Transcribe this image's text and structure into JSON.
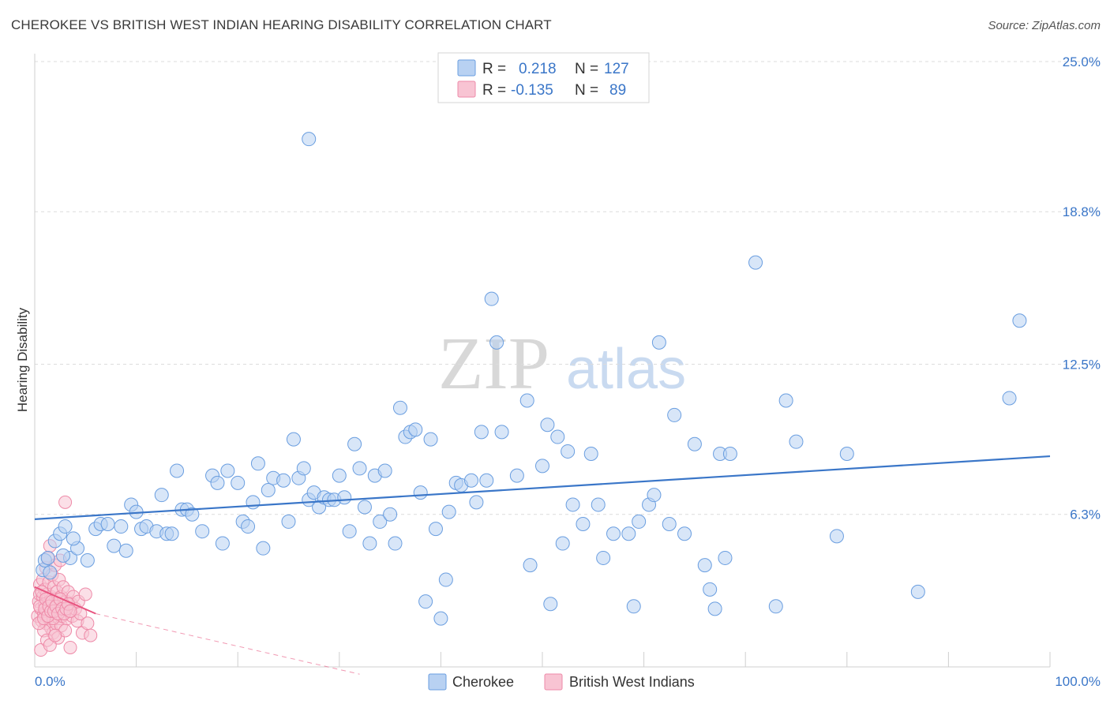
{
  "title": "CHEROKEE VS BRITISH WEST INDIAN HEARING DISABILITY CORRELATION CHART",
  "source": "Source: ZipAtlas.com",
  "watermark": {
    "zip": "ZIP",
    "atlas": "atlas"
  },
  "legend": [
    {
      "r_label": "R =",
      "r_value": "0.218",
      "n_label": "N =",
      "n_value": "127",
      "fill": "#b8d1f2",
      "stroke": "#6a9ee0"
    },
    {
      "r_label": "R =",
      "r_value": "-0.135",
      "n_label": "N =",
      "n_value": "89",
      "fill": "#f8c4d3",
      "stroke": "#ee8aa8"
    }
  ],
  "bottom_legend": [
    {
      "label": "Cherokee",
      "fill": "#b8d1f2",
      "stroke": "#6a9ee0"
    },
    {
      "label": "British West Indians",
      "fill": "#f8c4d3",
      "stroke": "#ee8aa8"
    }
  ],
  "chart_data": {
    "type": "scatter",
    "ylabel": "Hearing Disability",
    "xlabel": "",
    "xlim": [
      0,
      100
    ],
    "ylim": [
      0,
      25
    ],
    "x_tick_labels": [
      "0.0%",
      "100.0%"
    ],
    "y_tick_labels": [
      "6.3%",
      "12.5%",
      "18.8%",
      "25.0%"
    ],
    "y_ticks": [
      6.3,
      12.5,
      18.8,
      25.0
    ],
    "colors": {
      "cherokee": "#3a76c8",
      "bwi": "#e8537f"
    },
    "series": [
      {
        "name": "Cherokee",
        "trend": {
          "x": [
            0,
            100
          ],
          "y": [
            6.1,
            8.7
          ],
          "style": "solid"
        },
        "points": [
          [
            0.8,
            4.0
          ],
          [
            1.0,
            4.4
          ],
          [
            1.3,
            4.5
          ],
          [
            2.0,
            5.2
          ],
          [
            2.5,
            5.5
          ],
          [
            3.0,
            5.8
          ],
          [
            3.5,
            4.5
          ],
          [
            4.2,
            4.9
          ],
          [
            5.2,
            4.4
          ],
          [
            6.0,
            5.7
          ],
          [
            6.5,
            5.9
          ],
          [
            7.2,
            5.9
          ],
          [
            7.8,
            5.0
          ],
          [
            8.5,
            5.8
          ],
          [
            9.0,
            4.8
          ],
          [
            9.5,
            6.7
          ],
          [
            10.0,
            6.4
          ],
          [
            10.5,
            5.7
          ],
          [
            11.0,
            5.8
          ],
          [
            12.0,
            5.6
          ],
          [
            12.5,
            7.1
          ],
          [
            13.0,
            5.5
          ],
          [
            13.5,
            5.5
          ],
          [
            14.0,
            8.1
          ],
          [
            14.5,
            6.5
          ],
          [
            15.0,
            6.5
          ],
          [
            15.5,
            6.3
          ],
          [
            16.5,
            5.6
          ],
          [
            17.5,
            7.9
          ],
          [
            18.0,
            7.6
          ],
          [
            18.5,
            5.1
          ],
          [
            19.0,
            8.1
          ],
          [
            20.0,
            7.6
          ],
          [
            20.5,
            6.0
          ],
          [
            21.0,
            5.8
          ],
          [
            21.5,
            6.8
          ],
          [
            22.0,
            8.4
          ],
          [
            22.5,
            4.9
          ],
          [
            23.0,
            7.3
          ],
          [
            23.5,
            7.8
          ],
          [
            24.5,
            7.7
          ],
          [
            25.0,
            6.0
          ],
          [
            25.5,
            9.4
          ],
          [
            26.0,
            7.8
          ],
          [
            26.5,
            8.2
          ],
          [
            27.0,
            6.9
          ],
          [
            27.5,
            7.2
          ],
          [
            28.0,
            6.6
          ],
          [
            28.5,
            7.0
          ],
          [
            29.0,
            6.9
          ],
          [
            27.0,
            21.8
          ],
          [
            29.5,
            6.9
          ],
          [
            30.0,
            7.9
          ],
          [
            30.5,
            7.0
          ],
          [
            31.0,
            5.6
          ],
          [
            31.5,
            9.2
          ],
          [
            32.0,
            8.2
          ],
          [
            32.5,
            6.6
          ],
          [
            33.0,
            5.1
          ],
          [
            33.5,
            7.9
          ],
          [
            34.0,
            6.0
          ],
          [
            34.5,
            8.1
          ],
          [
            35.0,
            6.3
          ],
          [
            35.5,
            5.1
          ],
          [
            36.0,
            10.7
          ],
          [
            36.5,
            9.5
          ],
          [
            37.0,
            9.7
          ],
          [
            37.5,
            9.8
          ],
          [
            38.0,
            7.2
          ],
          [
            38.5,
            2.7
          ],
          [
            39.0,
            9.4
          ],
          [
            39.5,
            5.7
          ],
          [
            40.0,
            2.0
          ],
          [
            40.5,
            3.6
          ],
          [
            40.8,
            6.4
          ],
          [
            41.5,
            7.6
          ],
          [
            42.0,
            7.5
          ],
          [
            43.0,
            7.7
          ],
          [
            43.5,
            6.8
          ],
          [
            44.0,
            9.7
          ],
          [
            44.5,
            7.7
          ],
          [
            45.0,
            15.2
          ],
          [
            45.5,
            13.4
          ],
          [
            46.0,
            9.7
          ],
          [
            47.5,
            7.9
          ],
          [
            48.5,
            11.0
          ],
          [
            48.8,
            4.2
          ],
          [
            50.0,
            8.3
          ],
          [
            50.5,
            10.0
          ],
          [
            50.8,
            2.6
          ],
          [
            51.5,
            9.5
          ],
          [
            52.0,
            5.1
          ],
          [
            52.5,
            8.9
          ],
          [
            53.0,
            6.7
          ],
          [
            54.0,
            5.9
          ],
          [
            54.8,
            8.8
          ],
          [
            55.5,
            6.7
          ],
          [
            56.0,
            4.5
          ],
          [
            57.0,
            5.5
          ],
          [
            58.5,
            5.5
          ],
          [
            59.0,
            2.5
          ],
          [
            59.5,
            6.0
          ],
          [
            60.5,
            6.7
          ],
          [
            61.0,
            7.1
          ],
          [
            61.5,
            13.4
          ],
          [
            62.5,
            5.9
          ],
          [
            63.0,
            10.4
          ],
          [
            64.0,
            5.5
          ],
          [
            65.0,
            9.2
          ],
          [
            66.0,
            4.2
          ],
          [
            66.5,
            3.2
          ],
          [
            67.0,
            2.4
          ],
          [
            67.5,
            8.8
          ],
          [
            68.0,
            4.5
          ],
          [
            68.5,
            8.8
          ],
          [
            71.0,
            16.7
          ],
          [
            73.0,
            2.5
          ],
          [
            74.0,
            11.0
          ],
          [
            75.0,
            9.3
          ],
          [
            79.0,
            5.4
          ],
          [
            80.0,
            8.8
          ],
          [
            87.0,
            3.1
          ],
          [
            96.0,
            11.1
          ],
          [
            97.0,
            14.3
          ],
          [
            1.5,
            3.9
          ],
          [
            2.8,
            4.6
          ],
          [
            3.8,
            5.3
          ]
        ]
      },
      {
        "name": "British West Indians",
        "trend": {
          "x": [
            0,
            6
          ],
          "y": [
            3.3,
            2.2
          ],
          "style": "solid",
          "extension": {
            "x": [
              6,
              32
            ],
            "y": [
              2.2,
              -0.3
            ],
            "style": "dashed"
          }
        },
        "points": [
          [
            0.3,
            2.1
          ],
          [
            0.4,
            2.7
          ],
          [
            0.5,
            3.0
          ],
          [
            0.5,
            3.4
          ],
          [
            0.6,
            2.4
          ],
          [
            0.7,
            1.9
          ],
          [
            0.8,
            2.9
          ],
          [
            0.8,
            3.6
          ],
          [
            0.9,
            2.2
          ],
          [
            1.0,
            2.6
          ],
          [
            1.0,
            3.2
          ],
          [
            1.1,
            1.8
          ],
          [
            1.1,
            4.1
          ],
          [
            1.2,
            2.3
          ],
          [
            1.2,
            3.0
          ],
          [
            1.3,
            2.8
          ],
          [
            1.3,
            4.5
          ],
          [
            1.4,
            2.0
          ],
          [
            1.4,
            3.5
          ],
          [
            1.5,
            2.5
          ],
          [
            1.5,
            5.0
          ],
          [
            1.6,
            1.6
          ],
          [
            1.6,
            2.9
          ],
          [
            1.7,
            2.2
          ],
          [
            1.7,
            3.8
          ],
          [
            1.8,
            1.4
          ],
          [
            1.8,
            2.6
          ],
          [
            1.9,
            2.0
          ],
          [
            1.9,
            3.3
          ],
          [
            2.0,
            2.4
          ],
          [
            2.0,
            4.2
          ],
          [
            2.1,
            1.8
          ],
          [
            2.1,
            2.8
          ],
          [
            2.2,
            2.2
          ],
          [
            2.2,
            3.1
          ],
          [
            2.3,
            1.2
          ],
          [
            2.3,
            2.6
          ],
          [
            2.4,
            2.0
          ],
          [
            2.4,
            3.6
          ],
          [
            2.5,
            2.3
          ],
          [
            2.5,
            4.4
          ],
          [
            2.6,
            1.7
          ],
          [
            2.6,
            2.9
          ],
          [
            2.7,
            2.1
          ],
          [
            2.8,
            3.3
          ],
          [
            2.9,
            2.5
          ],
          [
            3.0,
            1.5
          ],
          [
            3.0,
            6.8
          ],
          [
            3.1,
            2.7
          ],
          [
            3.2,
            2.0
          ],
          [
            3.3,
            3.1
          ],
          [
            3.4,
            2.3
          ],
          [
            3.5,
            0.8
          ],
          [
            3.6,
            2.6
          ],
          [
            3.7,
            2.1
          ],
          [
            3.8,
            2.9
          ],
          [
            4.0,
            2.4
          ],
          [
            4.2,
            1.9
          ],
          [
            4.3,
            2.7
          ],
          [
            4.5,
            2.2
          ],
          [
            4.7,
            1.4
          ],
          [
            5.0,
            3.0
          ],
          [
            5.2,
            1.8
          ],
          [
            5.5,
            1.3
          ],
          [
            0.6,
            0.7
          ],
          [
            0.9,
            1.5
          ],
          [
            1.2,
            1.1
          ],
          [
            1.5,
            0.9
          ],
          [
            1.8,
            2.0
          ],
          [
            2.0,
            1.3
          ],
          [
            0.4,
            1.8
          ],
          [
            0.5,
            2.5
          ],
          [
            0.7,
            3.1
          ],
          [
            0.9,
            2.0
          ],
          [
            1.0,
            2.4
          ],
          [
            1.1,
            2.8
          ],
          [
            1.3,
            2.1
          ],
          [
            1.4,
            2.5
          ],
          [
            1.6,
            2.3
          ],
          [
            1.7,
            2.7
          ],
          [
            1.9,
            2.3
          ],
          [
            2.1,
            2.5
          ],
          [
            2.3,
            2.2
          ],
          [
            2.5,
            2.8
          ],
          [
            2.7,
            2.4
          ],
          [
            2.9,
            2.2
          ],
          [
            3.1,
            2.4
          ],
          [
            3.3,
            2.6
          ],
          [
            3.5,
            2.3
          ]
        ]
      }
    ]
  }
}
